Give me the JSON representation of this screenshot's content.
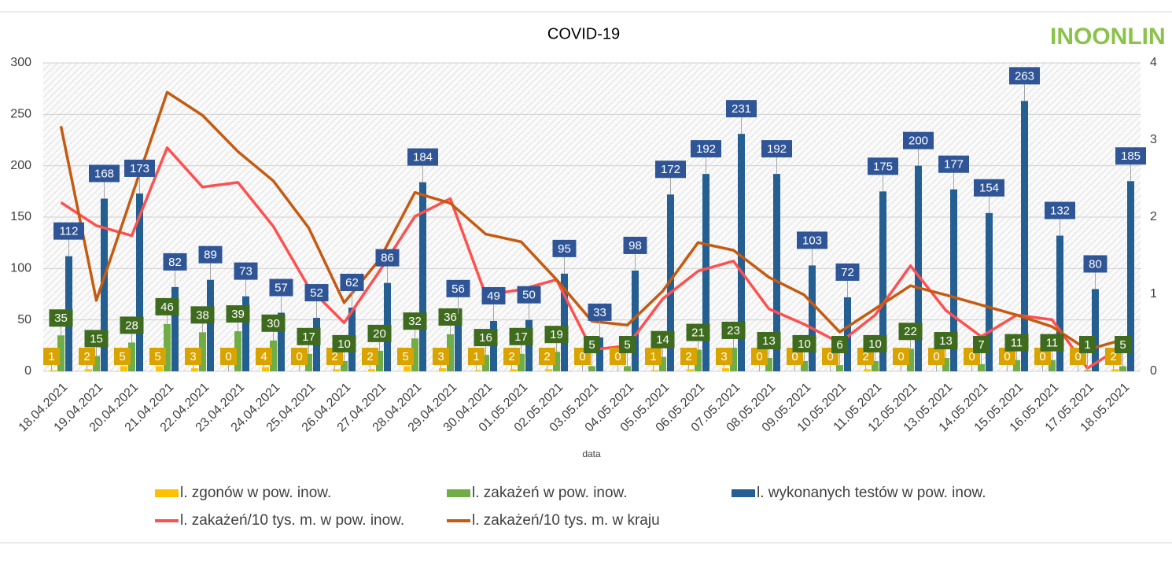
{
  "chart_data": {
    "type": "bar",
    "title": "COVID-19",
    "logo": "INOONLIN",
    "x_label": "data",
    "categories": [
      "18.04.2021",
      "19.04.2021",
      "20.04.2021",
      "21.04.2021",
      "22.04.2021",
      "23.04.2021",
      "24.04.2021",
      "25.04.2021",
      "26.04.2021",
      "27.04.2021",
      "28.04.2021",
      "29.04.2021",
      "30.04.2021",
      "01.05.2021",
      "02.05.2021",
      "03.05.2021",
      "04.05.2021",
      "05.05.2021",
      "06.05.2021",
      "07.05.2021",
      "08.05.2021",
      "09.05.2021",
      "10.05.2021",
      "11.05.2021",
      "12.05.2021",
      "13.05.2021",
      "14.05.2021",
      "15.05.2021",
      "16.05.2021",
      "17.05.2021",
      "18.05.2021"
    ],
    "series": [
      {
        "name": "l. zgonów w pow. inow.",
        "type": "bar",
        "color": "#ffc000",
        "label_color": "#d9a400",
        "values": [
          1,
          2,
          5,
          5,
          3,
          0,
          4,
          0,
          2,
          2,
          5,
          3,
          1,
          2,
          2,
          0,
          0,
          1,
          2,
          3,
          0,
          0,
          0,
          2,
          0,
          0,
          0,
          0,
          0,
          0,
          2
        ]
      },
      {
        "name": "l. zakażeń w pow. inow.",
        "type": "bar",
        "color": "#70ad47",
        "label_color": "#3f6b1f",
        "values": [
          35,
          15,
          28,
          46,
          38,
          39,
          30,
          17,
          10,
          20,
          32,
          36,
          16,
          17,
          19,
          5,
          5,
          14,
          21,
          23,
          13,
          10,
          6,
          10,
          22,
          13,
          7,
          11,
          11,
          1,
          5
        ]
      },
      {
        "name": "l. wykonanych testów w pow. inow.",
        "type": "bar",
        "color": "#255e91",
        "label_color": "#2f5597",
        "values": [
          112,
          168,
          173,
          82,
          89,
          73,
          57,
          52,
          62,
          86,
          184,
          56,
          49,
          50,
          95,
          33,
          98,
          172,
          192,
          231,
          192,
          103,
          72,
          175,
          200,
          177,
          154,
          263,
          132,
          80,
          185
        ]
      },
      {
        "name": "l. zakażeń/10 tys. m. w pow. inow.",
        "type": "line",
        "axis": "y2",
        "color": "#ff5050",
        "values": [
          2.19,
          1.89,
          1.76,
          2.9,
          2.39,
          2.45,
          1.88,
          1.09,
          0.63,
          1.3,
          2.01,
          2.24,
          0.99,
          1.06,
          1.19,
          0.28,
          0.33,
          0.94,
          1.3,
          1.43,
          0.81,
          0.61,
          0.37,
          0.73,
          1.37,
          0.79,
          0.45,
          0.73,
          0.67,
          0.04,
          0.33
        ]
      },
      {
        "name": "l. zakażeń/10 tys. m. w kraju",
        "type": "line",
        "axis": "y2",
        "color": "#c55a11",
        "values": [
          3.18,
          0.92,
          2.27,
          3.62,
          3.32,
          2.85,
          2.47,
          1.86,
          0.89,
          1.45,
          2.32,
          2.18,
          1.78,
          1.68,
          1.19,
          0.65,
          0.6,
          1.04,
          1.67,
          1.57,
          1.22,
          0.99,
          0.51,
          0.81,
          1.11,
          0.99,
          0.86,
          0.73,
          0.58,
          0.28,
          0.41
        ]
      }
    ],
    "ylim": [
      0,
      300
    ],
    "yticks": [
      0,
      50,
      100,
      150,
      200,
      250,
      300
    ],
    "y2lim": [
      0,
      4
    ],
    "y2ticks": [
      0,
      1,
      2,
      3,
      4
    ],
    "grid": true
  }
}
